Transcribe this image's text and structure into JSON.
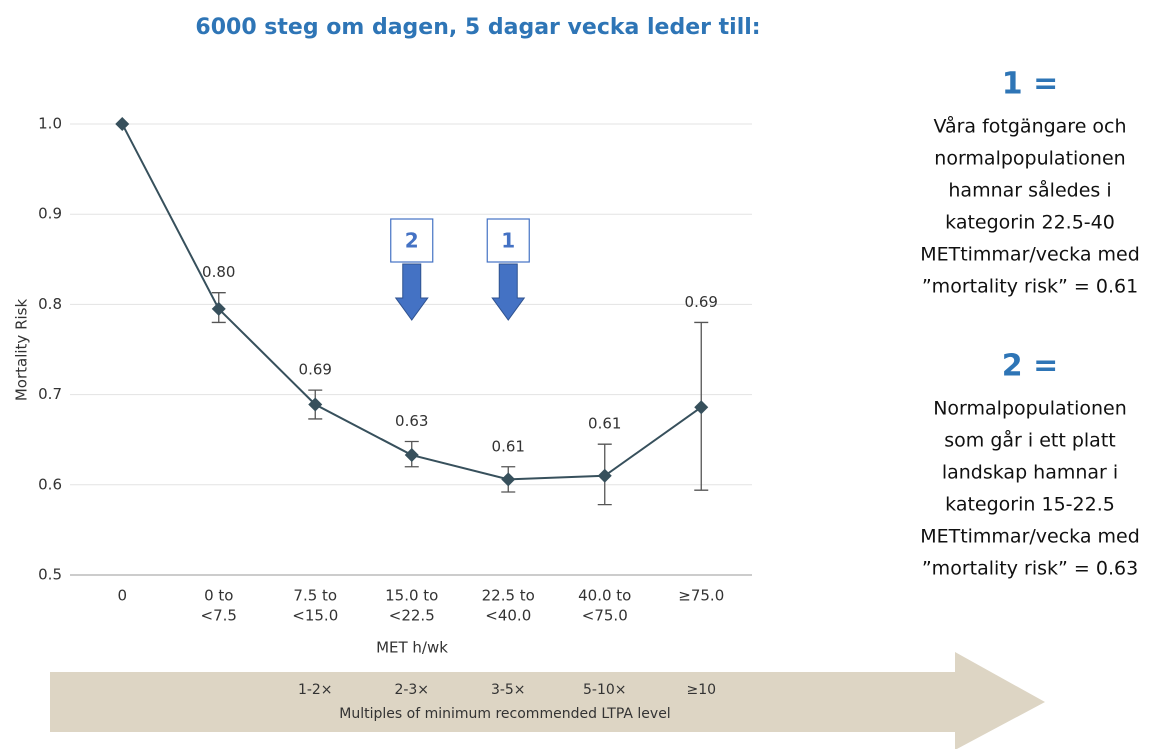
{
  "chart_data": {
    "type": "line",
    "title": "6000 steg om dagen, 5 dagar vecka leder till:",
    "x_label": "MET h/wk",
    "y_label": "Mortality Risk",
    "categories": [
      [
        "0"
      ],
      [
        "0 to",
        "<7.5"
      ],
      [
        "7.5 to",
        "<15.0"
      ],
      [
        "15.0 to",
        "<22.5"
      ],
      [
        "22.5 to",
        "<40.0"
      ],
      [
        "40.0 to",
        "<75.0"
      ],
      [
        "≥75.0"
      ]
    ],
    "values": [
      1.0,
      0.795,
      0.689,
      0.633,
      0.606,
      0.61,
      0.686
    ],
    "value_labels": [
      null,
      "0.80",
      "0.69",
      "0.63",
      "0.61",
      "0.61",
      "0.69"
    ],
    "ci_low": [
      null,
      0.78,
      0.673,
      0.62,
      0.592,
      0.578,
      0.594
    ],
    "ci_high": [
      null,
      0.813,
      0.705,
      0.648,
      0.62,
      0.645,
      0.78
    ],
    "color": "#37505c",
    "ylim": [
      0.5,
      1.0
    ],
    "yticks": [
      0.5,
      0.6,
      0.7,
      0.8,
      0.9,
      {
        "value": 1,
        "label": "1.0"
      }
    ],
    "grid": true,
    "markers": [
      {
        "label": "2",
        "category": 3
      },
      {
        "label": "1",
        "category": 4
      }
    ],
    "multiples": {
      "labels": [
        "1-2×",
        "2-3×",
        "3-5×",
        "5-10×",
        "≥10"
      ],
      "title": "Multiples of minimum recommended LTPA level"
    }
  },
  "notes": [
    {
      "heading": "1 =",
      "lines": [
        "Våra fotgängare och",
        "normalpopulationen",
        "hamnar således i",
        "kategorin 22.5-40",
        "METtimmar/vecka med",
        "”mortality risk” = 0.61"
      ]
    },
    {
      "heading": "2 =",
      "lines": [
        "Normalpopulationen",
        "som går i ett platt",
        "landskap hamnar i",
        "kategorin 15-22.5",
        "METtimmar/vecka med",
        "”mortality risk” = 0.63"
      ]
    }
  ]
}
